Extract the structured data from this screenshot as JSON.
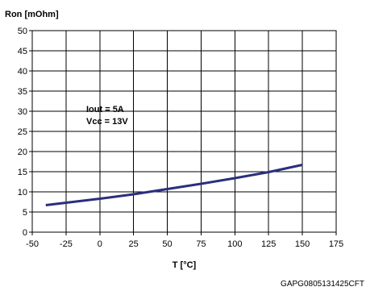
{
  "chart_data": {
    "type": "line",
    "title": "",
    "ylabel": "Ron [mOhm]",
    "xlabel": "T [°C]",
    "xlim": [
      -50,
      175
    ],
    "ylim": [
      0,
      50
    ],
    "xticks": [
      -50,
      -25,
      0,
      25,
      50,
      75,
      100,
      125,
      150,
      175
    ],
    "yticks": [
      0,
      5,
      10,
      15,
      20,
      25,
      30,
      35,
      40,
      45,
      50
    ],
    "grid": true,
    "series": [
      {
        "color": "#2b2e7e",
        "x": [
          -40,
          0,
          25,
          50,
          75,
          100,
          125,
          150
        ],
        "y": [
          6.7,
          8.3,
          9.4,
          10.7,
          12.0,
          13.4,
          14.9,
          16.7
        ]
      }
    ],
    "annotations": [
      "Iout = 5A",
      "Vcc = 13V"
    ]
  },
  "figure_code": "GAPG0805131425CFT"
}
